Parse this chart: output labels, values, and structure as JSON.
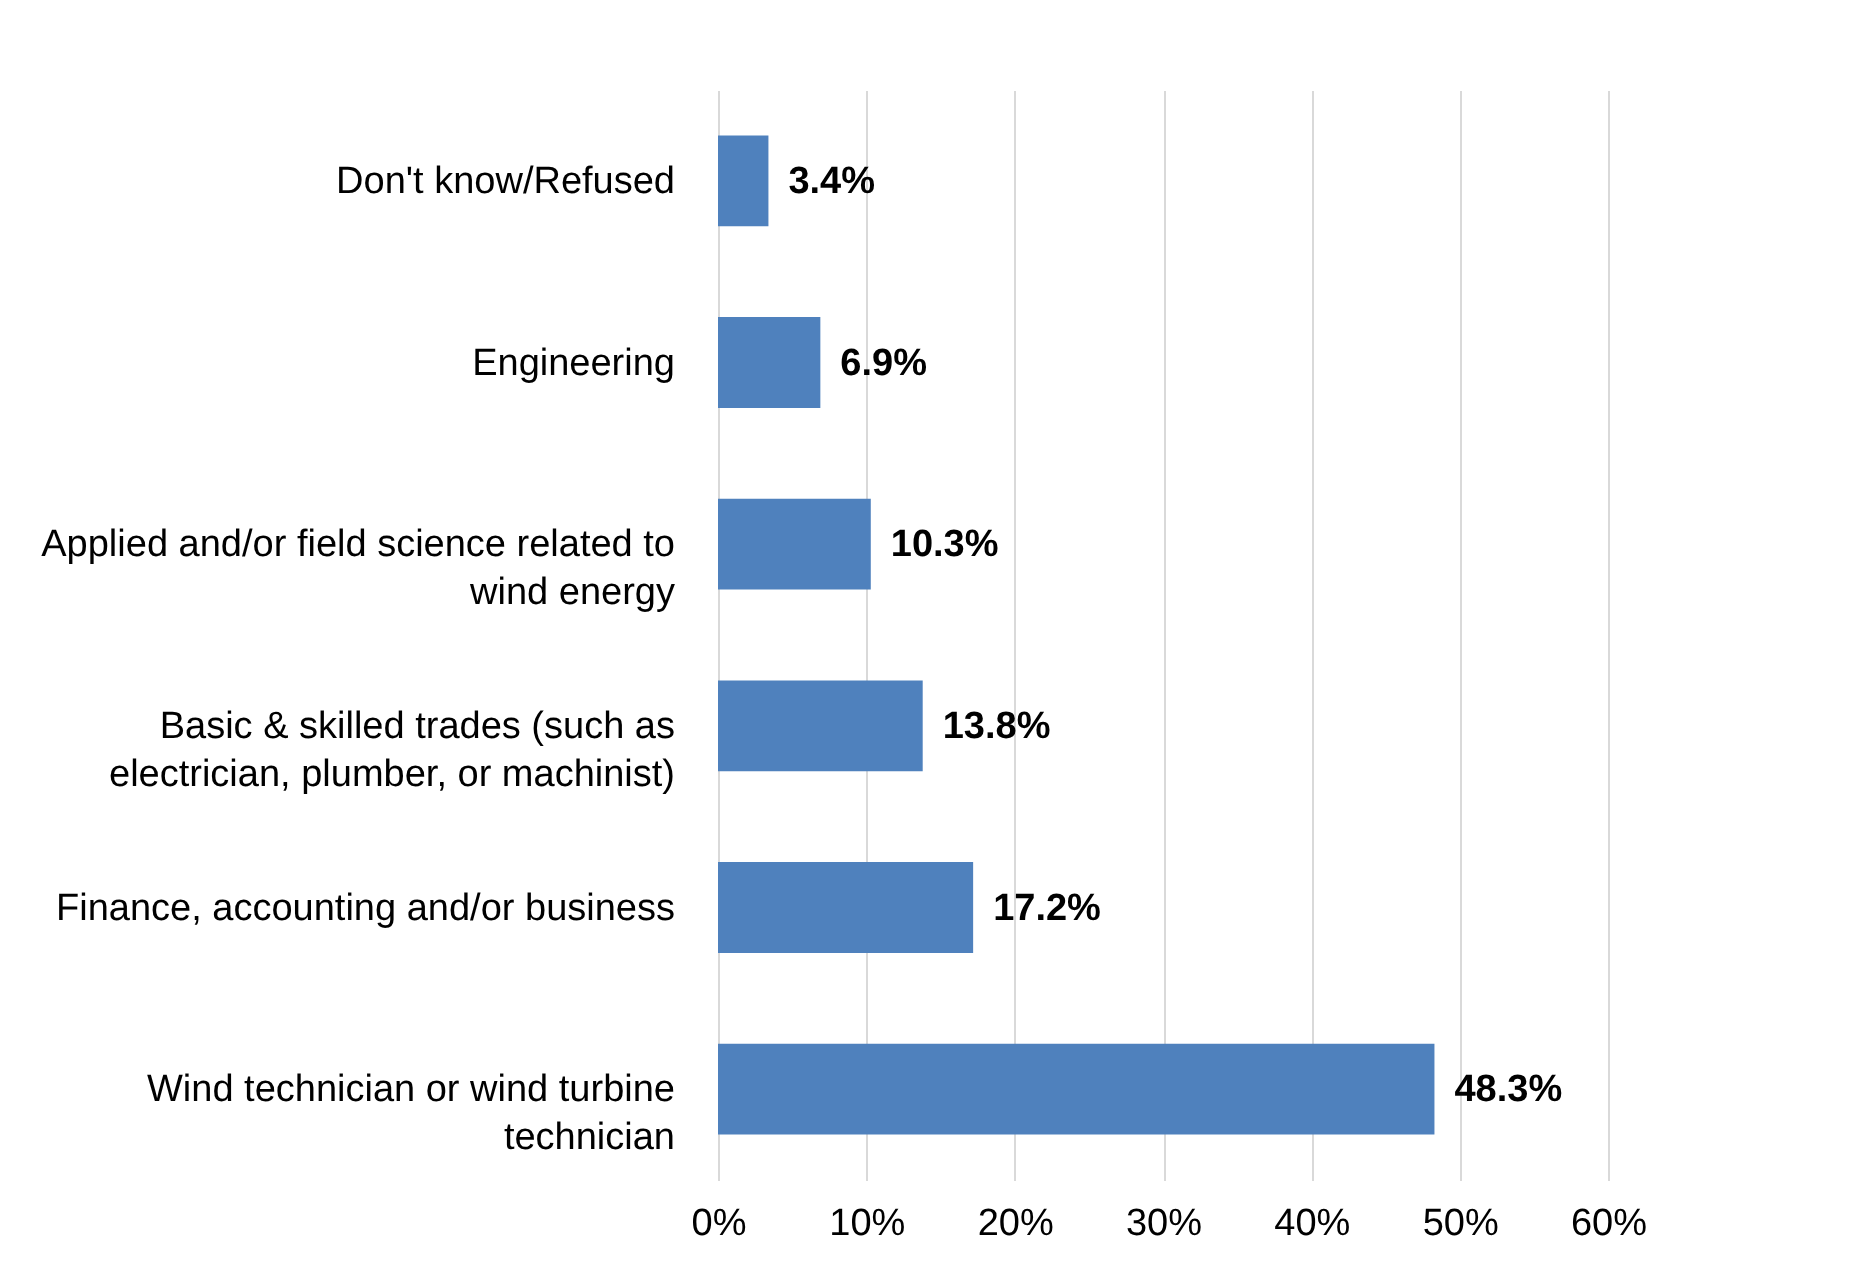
{
  "chart_data": {
    "type": "bar",
    "orientation": "horizontal",
    "categories": [
      "Don't know/Refused",
      "Engineering",
      "Applied and/or field science related to wind energy",
      "Basic & skilled trades (such as electrician, plumber, or machinist)",
      "Finance, accounting and/or business",
      "Wind technician or wind turbine technician"
    ],
    "values": [
      3.4,
      6.9,
      10.3,
      13.8,
      17.2,
      48.3
    ],
    "value_labels": [
      "3.4%",
      "6.9%",
      "10.3%",
      "13.8%",
      "17.2%",
      "48.3%"
    ],
    "color": "#4f81bd",
    "xlim": [
      0,
      60
    ],
    "xticks": [
      {
        "value": 0,
        "label": "0%"
      },
      {
        "value": 10,
        "label": "10%"
      },
      {
        "value": 20,
        "label": "20%"
      },
      {
        "value": 30,
        "label": "30%"
      },
      {
        "value": 40,
        "label": "40%"
      },
      {
        "value": 50,
        "label": "50%"
      },
      {
        "value": 60,
        "label": "60%"
      }
    ],
    "grid": "x"
  }
}
